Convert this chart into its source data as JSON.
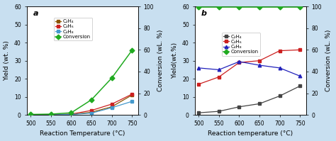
{
  "temperatures": [
    500,
    550,
    600,
    650,
    700,
    750
  ],
  "panel_a": {
    "label": "a",
    "c2h4": [
      0.1,
      0.1,
      0.3,
      1.5,
      4.5,
      11.0
    ],
    "c3h6": [
      0.1,
      0.1,
      0.5,
      2.5,
      6.0,
      11.5
    ],
    "c4h8": [
      0.1,
      0.1,
      0.3,
      1.0,
      4.0,
      7.5
    ],
    "conversion": [
      0.5,
      0.8,
      2.0,
      14.0,
      34.0,
      59.5
    ],
    "ylim_left": [
      0,
      60
    ],
    "ylim_right": [
      0,
      100
    ],
    "yticks_left": [
      0,
      10,
      20,
      30,
      40,
      50,
      60
    ],
    "yticks_right": [
      0,
      20,
      40,
      60,
      80,
      100
    ],
    "ylabel_left": "Yield (wt. %)",
    "ylabel_right": "Conversion (wL. %)",
    "xlabel": "Reaction Temperature (°C)",
    "legend_labels": [
      "C₂H₄",
      "C₃H₆",
      "C₄H₈",
      "Conversion"
    ],
    "colors": [
      "#8B5500",
      "#cc2020",
      "#4499cc",
      "#20aa20"
    ],
    "conversion_color": "#20aa20"
  },
  "panel_b": {
    "label": "b",
    "c2h4": [
      1.2,
      2.0,
      4.5,
      6.2,
      10.5,
      16.0
    ],
    "c3h6": [
      17.0,
      21.0,
      29.0,
      30.0,
      35.5,
      36.0
    ],
    "c4h8": [
      26.0,
      25.0,
      29.5,
      27.5,
      26.0,
      21.5
    ],
    "conversion": [
      99.5,
      99.5,
      99.5,
      99.5,
      99.5,
      99.5
    ],
    "ylim_left": [
      0,
      60
    ],
    "ylim_right": [
      0,
      100
    ],
    "yticks_left": [
      0,
      10,
      20,
      30,
      40,
      50,
      60
    ],
    "yticks_right": [
      0,
      20,
      40,
      60,
      80,
      100
    ],
    "ylabel_left": "Yield(wt.%)",
    "ylabel_right": "Conversion (wL. %)",
    "xlabel": "Reaction temperature (°C)",
    "legend_labels": [
      "C₂H₄",
      "C₃H₆",
      "C₄H₈",
      "Conversion"
    ],
    "colors": [
      "#444444",
      "#cc2020",
      "#2222bb",
      "#20aa20"
    ],
    "conversion_color": "#20aa20"
  },
  "background": "#c8dff0",
  "plot_bg": "#ffffff",
  "tick_fontsize": 5.5,
  "label_fontsize": 6.5,
  "legend_fontsize": 5.0,
  "linewidth": 0.9,
  "markersize": 3.0
}
